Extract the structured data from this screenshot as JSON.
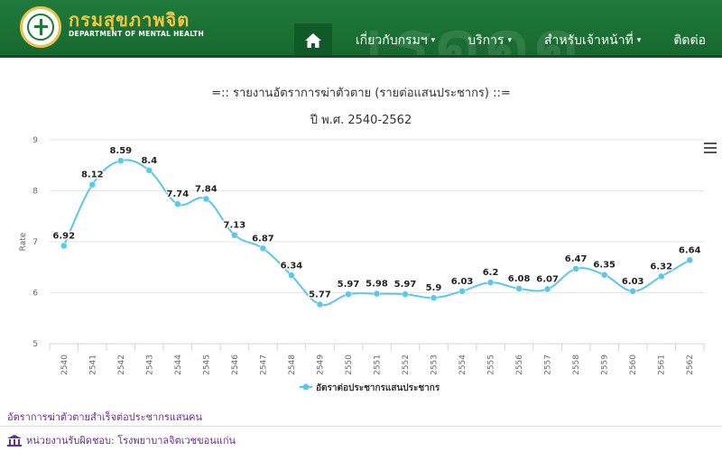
{
  "header": {
    "brand_th": "กรมสุขภาพจิต",
    "brand_en": "DEPARTMENT OF MENTAL HEALTH",
    "nav": [
      {
        "label": "เกี่ยวกับกรมฯ",
        "has_caret": true
      },
      {
        "label": "บริการ",
        "has_caret": true
      },
      {
        "label": "สำหรับเจ้าหน้าที่",
        "has_caret": true
      },
      {
        "label": "ติดต่อ",
        "has_caret": false
      }
    ],
    "colors": {
      "header_bg": "#1f7a3a",
      "brand_gold": "#f2c53d"
    }
  },
  "chart_data": {
    "type": "line",
    "title": "=:: รายงานอัตราการฆ่าตัวตาย (รายต่อแสนประชากร) ::=",
    "subtitle": "ปี พ.ศ. 2540-2562",
    "ylabel": "Rate",
    "xlabel": "",
    "ylim": [
      5,
      9
    ],
    "yticks": [
      "5",
      "6",
      "7",
      "8",
      "9"
    ],
    "grid": true,
    "legend_position": "bottom-center",
    "categories": [
      "2540",
      "2541",
      "2542",
      "2543",
      "2544",
      "2545",
      "2546",
      "2547",
      "2548",
      "2549",
      "2550",
      "2551",
      "2552",
      "2553",
      "2554",
      "2555",
      "2556",
      "2557",
      "2558",
      "2559",
      "2560",
      "2561",
      "2562"
    ],
    "series": [
      {
        "name": "อัตราต่อประชากรแสนประชากร",
        "color": "#5bc8e8",
        "values": [
          6.92,
          8.12,
          8.59,
          8.4,
          7.74,
          7.84,
          7.13,
          6.87,
          6.34,
          5.77,
          5.97,
          5.98,
          5.97,
          5.9,
          6.03,
          6.2,
          6.08,
          6.07,
          6.47,
          6.35,
          6.03,
          6.32,
          6.64
        ],
        "labels": [
          "6.92",
          "8.12",
          "8.59",
          "8.4",
          "7.74",
          "7.84",
          "7.13",
          "6.87",
          "6.34",
          "5.77",
          "5.97",
          "5.98",
          "5.97",
          "5.9",
          "6.03",
          "6.2",
          "6.08",
          "6.07",
          "6.47",
          "6.35",
          "6.03",
          "6.32",
          "6.64"
        ]
      }
    ]
  },
  "footer": {
    "note": "อัตราการฆ่าตัวตายสำเร็จต่อประชากรแสนคน",
    "org": "หน่วยงานรับผิดชอบ: โรงพยาบาลจิตเวชขอนแก่น"
  }
}
